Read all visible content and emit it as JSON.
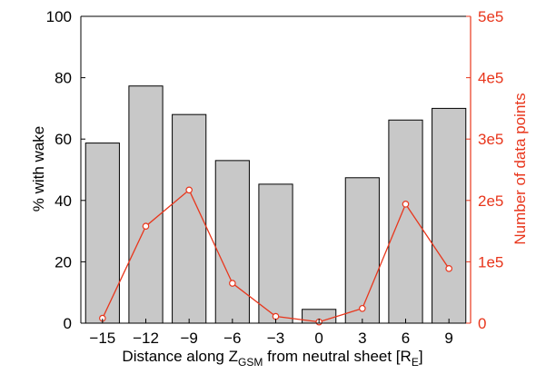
{
  "chart_data": {
    "type": "bar",
    "categories": [
      "−15",
      "−12",
      "−9",
      "−6",
      "−3",
      "0",
      "3",
      "6",
      "9"
    ],
    "series": [
      {
        "values": [
          58.7,
          77.3,
          68.0,
          53.0,
          45.3,
          4.5,
          47.4,
          66.2,
          70.0
        ]
      },
      {
        "values": [
          8000,
          158000,
          217000,
          65000,
          11000,
          2000,
          24000,
          194000,
          89000
        ]
      }
    ],
    "xlabel": {
      "prefix": "Distance along Z",
      "subscript": "GSM",
      "middle": " from neutral sheet [R",
      "subscript2": "E",
      "suffix": "]"
    },
    "ylabel": "% with wake",
    "ylabel_right": "Number of data points",
    "ylim": [
      0,
      100
    ],
    "ylim_right": [
      0,
      500000
    ],
    "yticks": [
      "0",
      "20",
      "40",
      "60",
      "80",
      "100"
    ],
    "yticks_right": [
      "0",
      "1e5",
      "2e5",
      "3e5",
      "4e5",
      "5e5"
    ],
    "colors": {
      "bar_fill": "#c8c8c8",
      "bar_stroke": "#000000",
      "line": "#e8361c",
      "right_axis": "#e8361c"
    },
    "grid": false
  }
}
